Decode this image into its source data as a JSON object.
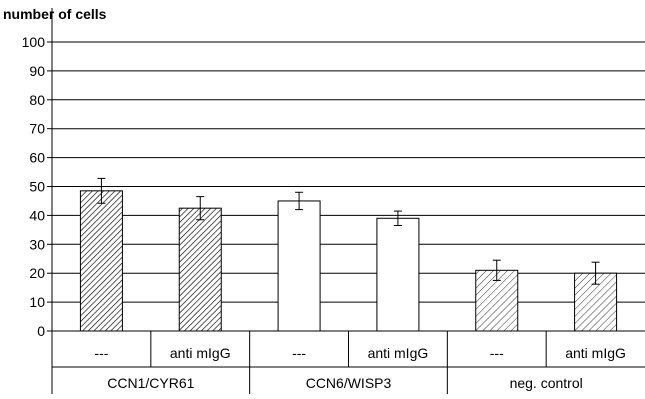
{
  "chart_data": {
    "type": "bar",
    "ylabel": "number of cells",
    "xlabel": "",
    "ylim": [
      0,
      100
    ],
    "yticks": [
      0,
      10,
      20,
      30,
      40,
      50,
      60,
      70,
      80,
      90,
      100
    ],
    "grid": true,
    "legend": "none",
    "groups": [
      "CCN1/CYR61",
      "CCN6/WISP3",
      "neg. control"
    ],
    "categories": [
      "---",
      "anti mIgG",
      "---",
      "anti mIgG",
      "---",
      "anti mIgG"
    ],
    "group_of_category": [
      0,
      0,
      1,
      1,
      2,
      2
    ],
    "values": [
      48.5,
      42.5,
      45,
      39,
      21,
      20
    ],
    "errors": [
      4.3,
      4.0,
      3.0,
      2.5,
      3.5,
      3.8
    ],
    "fills": [
      "hatch-dense",
      "hatch-dense",
      "white",
      "white",
      "hatch-light",
      "hatch-light"
    ],
    "colors": {
      "bar_stroke": "#000000",
      "grid": "#000000",
      "hatch": "#000000",
      "background": "#ffffff"
    }
  }
}
